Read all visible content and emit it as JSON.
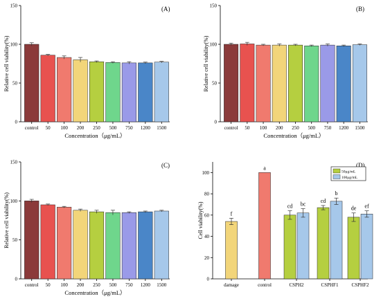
{
  "chart_data": [
    {
      "panel": "(A)",
      "type": "bar",
      "ylabel": "Relative cell viability(%)",
      "xlabel": "Concentration（μg/mL）",
      "ylim": [
        0,
        150
      ],
      "yticks": [
        0,
        50,
        100,
        150
      ],
      "categories": [
        "control",
        "50",
        "100",
        "200",
        "250",
        "500",
        "750",
        "1200",
        "1500"
      ],
      "values": [
        100,
        86,
        83,
        80,
        77.5,
        76.5,
        76,
        76,
        77
      ],
      "errors": [
        2,
        1,
        2,
        3,
        1,
        1,
        1.5,
        1,
        1
      ]
    },
    {
      "panel": "(B)",
      "type": "bar",
      "ylabel": "Relative cell viability(%)",
      "xlabel": "Concentration（μg/mL）",
      "ylim": [
        0,
        150
      ],
      "yticks": [
        0,
        50,
        100,
        150
      ],
      "categories": [
        "control",
        "50",
        "100",
        "200",
        "250",
        "500",
        "750",
        "1200",
        "1500"
      ],
      "values": [
        100,
        100.5,
        99,
        99,
        99,
        98,
        99,
        98,
        99.5
      ],
      "errors": [
        1.5,
        2,
        1,
        1.5,
        1,
        1,
        1.5,
        1,
        1
      ]
    },
    {
      "panel": "(C)",
      "type": "bar",
      "ylabel": "Relative cell viability(%)",
      "xlabel": "Concentration（μg/mL）",
      "ylim": [
        0,
        150
      ],
      "yticks": [
        0,
        50,
        100,
        150
      ],
      "categories": [
        "control",
        "50",
        "100",
        "200",
        "250",
        "500",
        "750",
        "1200",
        "1500"
      ],
      "values": [
        100,
        95,
        92,
        88,
        86,
        85,
        85,
        86,
        87
      ],
      "errors": [
        2,
        1,
        1,
        1.5,
        2,
        3,
        1,
        1,
        1
      ]
    },
    {
      "panel": "(D)",
      "type": "bar",
      "ylabel": "Cell viability(%)",
      "ylim": [
        0,
        110
      ],
      "yticks": [
        0,
        20,
        40,
        60,
        80,
        100
      ],
      "categories": [
        "damage",
        "control",
        "CSPH2",
        "CSPHF1",
        "CSPHF2"
      ],
      "legend": {
        "placement": "top-right",
        "entries": [
          "50μg/mL",
          "100μg/mL"
        ]
      },
      "bars": [
        {
          "category": "damage",
          "value": 54,
          "error": 3,
          "letter": "f",
          "color": "#f2d57a"
        },
        {
          "category": "control",
          "value": 100,
          "error": 0,
          "letter": "a",
          "color": "#f07a6e"
        },
        {
          "category": "CSPH2",
          "value": 60,
          "error": 4,
          "letter": "cd",
          "color": "#b5cf40",
          "series": "50μg/mL"
        },
        {
          "category": "CSPH2",
          "value": 62,
          "error": 4,
          "letter": "bc",
          "color": "#a6c8ea",
          "series": "100μg/mL"
        },
        {
          "category": "CSPHF1",
          "value": 67,
          "error": 2,
          "letter": "cd",
          "color": "#b5cf40",
          "series": "50μg/mL"
        },
        {
          "category": "CSPHF1",
          "value": 73,
          "error": 3,
          "letter": "b",
          "color": "#a6c8ea",
          "series": "100μg/mL"
        },
        {
          "category": "CSPHF2",
          "value": 58,
          "error": 4,
          "letter": "de",
          "color": "#b5cf40",
          "series": "50μg/mL"
        },
        {
          "category": "CSPHF2",
          "value": 61,
          "error": 3,
          "letter": "ef",
          "color": "#a6c8ea",
          "series": "100μg/mL"
        }
      ]
    }
  ],
  "colors": [
    "#8b3a3a",
    "#e8524f",
    "#f07a6e",
    "#f2d57a",
    "#b5cf40",
    "#6fd68c",
    "#9a9ae8",
    "#4a86c8",
    "#a6c8ea"
  ]
}
